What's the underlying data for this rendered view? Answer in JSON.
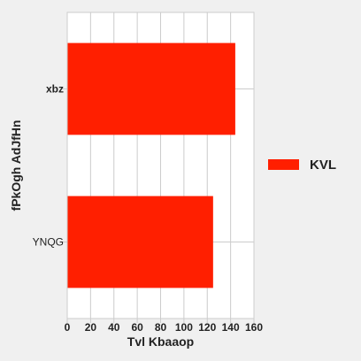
{
  "chart_data": {
    "type": "bar",
    "orientation": "horizontal",
    "categories": [
      "xbz",
      "YNQG"
    ],
    "series": [
      {
        "name": "KVL",
        "values": [
          144,
          125
        ],
        "color": "#ff1f00"
      }
    ],
    "xlabel": "Tvl Kbaaop",
    "ylabel": "fPkOgh AdJfHn",
    "xlim": [
      0,
      160
    ],
    "xticks": [
      "0",
      "20",
      "40",
      "60",
      "80",
      "100",
      "120",
      "140",
      "160"
    ],
    "grid": true,
    "legend_position": "right",
    "background": "#f0f0f0",
    "plot_background": "#ffffff",
    "grid_color": "#cccccc"
  }
}
